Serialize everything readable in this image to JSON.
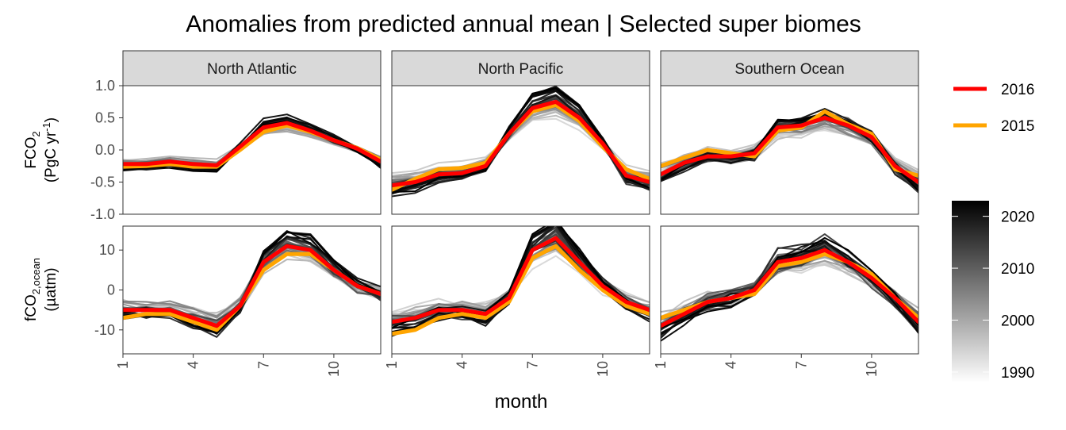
{
  "title": "Anomalies from predicted annual mean | Selected super biomes",
  "xlabel": "month",
  "facets": [
    "North Atlantic",
    "North Pacific",
    "Southern Ocean"
  ],
  "rows": [
    {
      "label_main": "FCO",
      "label_sub": "2",
      "label_unit": "(PgC yr",
      "label_unit_sup": "-1",
      "label_unit_end": ")"
    },
    {
      "label_main": "fCO",
      "label_sub": "2,ocean",
      "label_unit": "(µatm)"
    }
  ],
  "legend": {
    "highlight": [
      {
        "name": "2016",
        "color": "#ff0000"
      },
      {
        "name": "2015",
        "color": "#ffa500"
      }
    ],
    "colorbar": {
      "ticks": [
        "2020",
        "2010",
        "2000",
        "1990"
      ],
      "low_color": "#ffffff",
      "high_color": "#000000"
    }
  },
  "chart_data": {
    "type": "line",
    "x": [
      1,
      2,
      3,
      4,
      5,
      6,
      7,
      8,
      9,
      10,
      11,
      12
    ],
    "x_ticks": [
      "1",
      "4",
      "7",
      "10"
    ],
    "panels": [
      {
        "facet": "North Atlantic",
        "row": "FCO2",
        "ylim": [
          -1.0,
          1.0
        ],
        "y_ticks": [
          "1.0",
          "0.5",
          "0.0",
          "-0.5",
          "-1.0"
        ],
        "series": [
          {
            "name": "2016",
            "values": [
              -0.22,
              -0.22,
              -0.18,
              -0.22,
              -0.24,
              0.05,
              0.35,
              0.42,
              0.3,
              0.15,
              0.02,
              -0.18
            ]
          },
          {
            "name": "2015",
            "values": [
              -0.26,
              -0.25,
              -0.22,
              -0.26,
              -0.26,
              0.0,
              0.28,
              0.38,
              0.28,
              0.15,
              0.03,
              -0.15
            ]
          }
        ],
        "background_amp": 0.06
      },
      {
        "facet": "North Pacific",
        "row": "FCO2",
        "ylim": [
          -1.0,
          1.0
        ],
        "y_ticks": [
          "1.0",
          "0.5",
          "0.0",
          "-0.5",
          "-1.0"
        ],
        "series": [
          {
            "name": "2016",
            "values": [
              -0.55,
              -0.5,
              -0.38,
              -0.36,
              -0.25,
              0.25,
              0.65,
              0.75,
              0.5,
              0.1,
              -0.4,
              -0.5
            ]
          },
          {
            "name": "2015",
            "values": [
              -0.62,
              -0.45,
              -0.3,
              -0.28,
              -0.2,
              0.25,
              0.6,
              0.7,
              0.45,
              0.05,
              -0.3,
              -0.45
            ]
          }
        ],
        "background_amp": 0.08
      },
      {
        "facet": "Southern Ocean",
        "row": "FCO2",
        "ylim": [
          -1.0,
          1.0
        ],
        "y_ticks": [
          "1.0",
          "0.5",
          "0.0",
          "-0.5",
          "-1.0"
        ],
        "series": [
          {
            "name": "2016",
            "values": [
              -0.38,
              -0.2,
              -0.1,
              -0.1,
              -0.05,
              0.35,
              0.38,
              0.5,
              0.38,
              0.2,
              -0.25,
              -0.5
            ]
          },
          {
            "name": "2015",
            "values": [
              -0.25,
              -0.12,
              0.0,
              -0.05,
              -0.1,
              0.3,
              0.35,
              0.6,
              0.4,
              0.25,
              -0.3,
              -0.4
            ]
          }
        ],
        "background_amp": 0.12
      },
      {
        "facet": "North Atlantic",
        "row": "fCO2,ocean",
        "ylim": [
          -16,
          16
        ],
        "y_ticks": [
          "10",
          "0",
          "-10"
        ],
        "series": [
          {
            "name": "2016",
            "values": [
              -5,
              -5,
              -5,
              -7,
              -9,
              -4,
              7,
              11,
              10,
              5,
              1,
              -1
            ]
          },
          {
            "name": "2015",
            "values": [
              -7,
              -6,
              -6,
              -8,
              -10,
              -4,
              5,
              9,
              9,
              5,
              1,
              -1
            ]
          }
        ],
        "background_amp": 2.0
      },
      {
        "facet": "North Pacific",
        "row": "fCO2,ocean",
        "ylim": [
          -16,
          16
        ],
        "y_ticks": [
          "10",
          "0",
          "-10"
        ],
        "series": [
          {
            "name": "2016",
            "values": [
              -8,
              -7,
              -5,
              -5,
              -6,
              -2,
              10,
              13,
              7,
              1,
              -3,
              -5
            ]
          },
          {
            "name": "2015",
            "values": [
              -11,
              -10,
              -7,
              -6,
              -7,
              -3,
              8,
              11,
              5,
              0,
              -4,
              -6
            ]
          }
        ],
        "background_amp": 2.0
      },
      {
        "facet": "Southern Ocean",
        "row": "fCO2,ocean",
        "ylim": [
          -16,
          16
        ],
        "y_ticks": [
          "10",
          "0",
          "-10"
        ],
        "series": [
          {
            "name": "2016",
            "values": [
              -9,
              -6,
              -3,
              -2,
              0,
              7,
              8,
              10,
              7,
              3,
              -2,
              -8
            ]
          },
          {
            "name": "2015",
            "values": [
              -7,
              -5,
              -3,
              -2,
              -1,
              6,
              7,
              9,
              7,
              4,
              -2,
              -7
            ]
          }
        ],
        "background_amp": 2.5
      }
    ]
  }
}
